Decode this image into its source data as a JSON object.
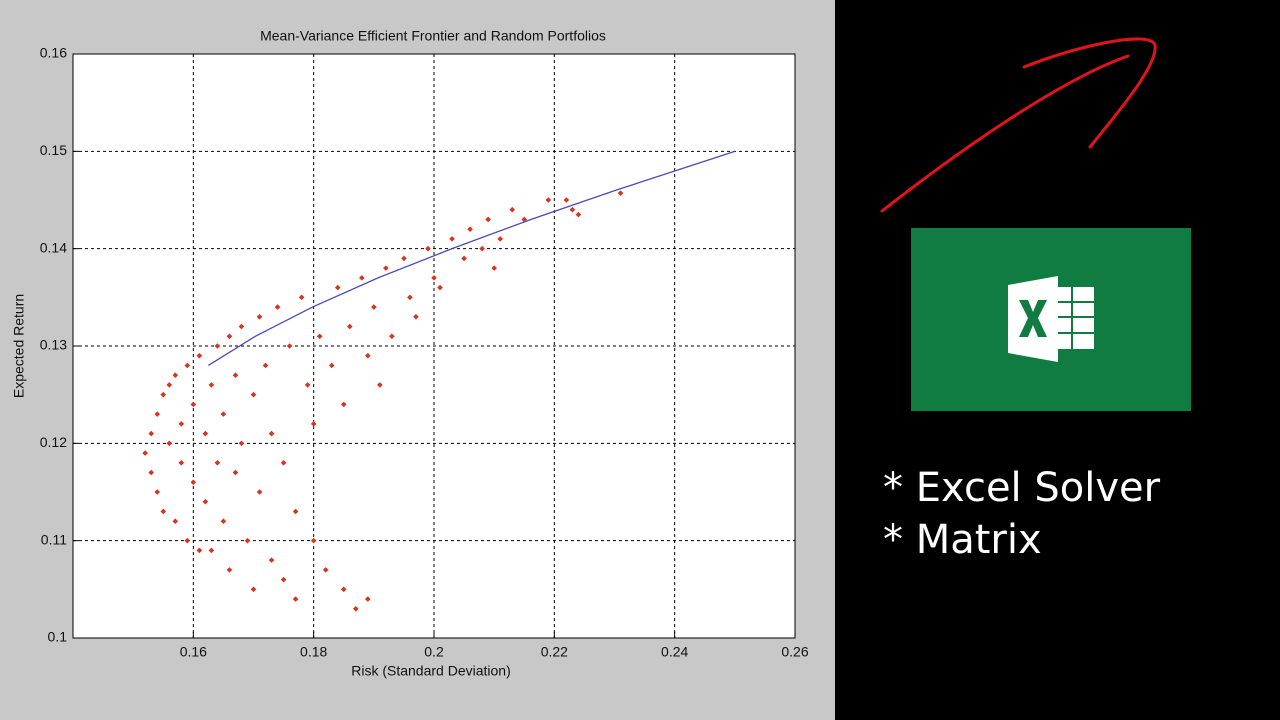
{
  "chart_data": {
    "type": "scatter",
    "title": "Mean-Variance Efficient Frontier and Random Portfolios",
    "xlabel": "Risk (Standard Deviation)",
    "ylabel": "Expected Return",
    "xlim": [
      0.14,
      0.26
    ],
    "xticks": [
      0.16,
      0.18,
      0.2,
      0.22,
      0.24,
      0.26
    ],
    "ylim": [
      0.1,
      0.16
    ],
    "yticks": [
      0.1,
      0.11,
      0.12,
      0.13,
      0.14,
      0.15,
      0.16
    ],
    "grid": true,
    "series": [
      {
        "type": "scatter",
        "color": "#d9341a",
        "x": [
          0.152,
          0.153,
          0.153,
          0.154,
          0.154,
          0.155,
          0.155,
          0.156,
          0.156,
          0.157,
          0.157,
          0.158,
          0.158,
          0.159,
          0.159,
          0.16,
          0.16,
          0.161,
          0.161,
          0.162,
          0.162,
          0.163,
          0.163,
          0.164,
          0.164,
          0.165,
          0.165,
          0.166,
          0.166,
          0.167,
          0.167,
          0.168,
          0.168,
          0.169,
          0.17,
          0.17,
          0.171,
          0.171,
          0.172,
          0.173,
          0.173,
          0.174,
          0.175,
          0.175,
          0.176,
          0.177,
          0.177,
          0.178,
          0.179,
          0.18,
          0.18,
          0.181,
          0.182,
          0.183,
          0.184,
          0.185,
          0.185,
          0.186,
          0.187,
          0.188,
          0.189,
          0.189,
          0.19,
          0.191,
          0.192,
          0.193,
          0.195,
          0.196,
          0.197,
          0.199,
          0.2,
          0.201,
          0.203,
          0.205,
          0.206,
          0.208,
          0.209,
          0.21,
          0.211,
          0.213,
          0.215,
          0.219,
          0.222,
          0.223,
          0.224,
          0.231
        ],
        "y": [
          0.119,
          0.121,
          0.117,
          0.123,
          0.115,
          0.125,
          0.113,
          0.126,
          0.12,
          0.112,
          0.127,
          0.118,
          0.122,
          0.11,
          0.128,
          0.124,
          0.116,
          0.109,
          0.129,
          0.121,
          0.114,
          0.126,
          0.109,
          0.13,
          0.118,
          0.123,
          0.112,
          0.131,
          0.107,
          0.127,
          0.117,
          0.132,
          0.12,
          0.11,
          0.125,
          0.105,
          0.133,
          0.115,
          0.128,
          0.121,
          0.108,
          0.134,
          0.118,
          0.106,
          0.13,
          0.113,
          0.104,
          0.135,
          0.126,
          0.122,
          0.11,
          0.131,
          0.107,
          0.128,
          0.136,
          0.124,
          0.105,
          0.132,
          0.103,
          0.137,
          0.129,
          0.104,
          0.134,
          0.126,
          0.138,
          0.131,
          0.139,
          0.135,
          0.133,
          0.14,
          0.137,
          0.136,
          0.141,
          0.139,
          0.142,
          0.14,
          0.143,
          0.138,
          0.141,
          0.144,
          0.143,
          0.145,
          0.145,
          0.144,
          0.1435,
          0.1457
        ]
      },
      {
        "type": "line",
        "color": "#4a4ab8",
        "x": [
          0.1625,
          0.1703,
          0.1798,
          0.1907,
          0.203,
          0.2161,
          0.2302,
          0.25
        ],
        "y": [
          0.128,
          0.131,
          0.134,
          0.137,
          0.14,
          0.143,
          0.146,
          0.15
        ]
      }
    ]
  },
  "bullets": [
    "* Excel Solver",
    "* Matrix"
  ]
}
